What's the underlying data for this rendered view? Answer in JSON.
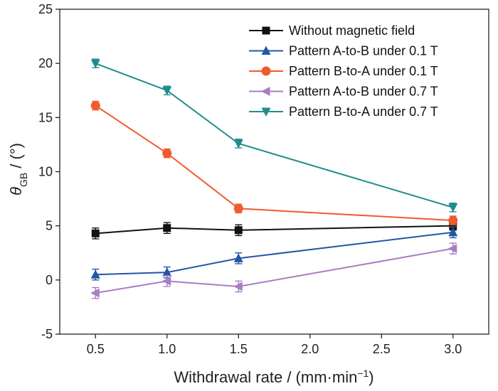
{
  "chart_data": {
    "type": "line",
    "title": "",
    "xlabel": "Withdrawal rate / (mm·min",
    "xlabel_sup": "−1",
    "xlabel_end": ")",
    "ylabel_symbol": "θ",
    "ylabel_sub": "GB",
    "ylabel_rest": " / (°)",
    "xlim": [
      0.25,
      3.25
    ],
    "ylim": [
      -5,
      25
    ],
    "xticks": [
      0.5,
      1.0,
      1.5,
      2.0,
      2.5,
      3.0
    ],
    "xtick_labels": [
      "0.5",
      "1.0",
      "1.5",
      "2.0",
      "2.5",
      "3.0"
    ],
    "yticks": [
      -5,
      0,
      5,
      10,
      15,
      20,
      25
    ],
    "ytick_labels": [
      "-5",
      "0",
      "5",
      "10",
      "15",
      "20",
      "25"
    ],
    "grid": false,
    "legend_position": "top-right",
    "x": [
      0.5,
      1.0,
      1.5,
      3.0
    ],
    "series": [
      {
        "name": "Without magnetic field",
        "marker": "square",
        "color": "#111111",
        "values": [
          4.3,
          4.8,
          4.6,
          5.0
        ],
        "errors": [
          0.5,
          0.5,
          0.5,
          0.4
        ]
      },
      {
        "name": "Pattern A-to-B under 0.1 T",
        "marker": "triangle-up",
        "color": "#2456a6",
        "values": [
          0.5,
          0.7,
          2.0,
          4.4
        ],
        "errors": [
          0.5,
          0.5,
          0.5,
          0.5
        ]
      },
      {
        "name": "Pattern B-to-A under 0.1 T",
        "marker": "circle",
        "color": "#ef5b2a",
        "values": [
          16.1,
          11.7,
          6.6,
          5.5
        ],
        "errors": [
          0.4,
          0.4,
          0.4,
          0.4
        ]
      },
      {
        "name": "Pattern A-to-B under 0.7 T",
        "marker": "triangle-left",
        "color": "#a97cc4",
        "values": [
          -1.2,
          -0.1,
          -0.6,
          2.9
        ],
        "errors": [
          0.5,
          0.5,
          0.5,
          0.5
        ]
      },
      {
        "name": "Pattern B-to-A under 0.7 T",
        "marker": "triangle-down",
        "color": "#1f8d8d",
        "values": [
          20.0,
          17.5,
          12.6,
          6.7
        ],
        "errors": [
          0.4,
          0.4,
          0.4,
          0.4
        ]
      }
    ]
  }
}
